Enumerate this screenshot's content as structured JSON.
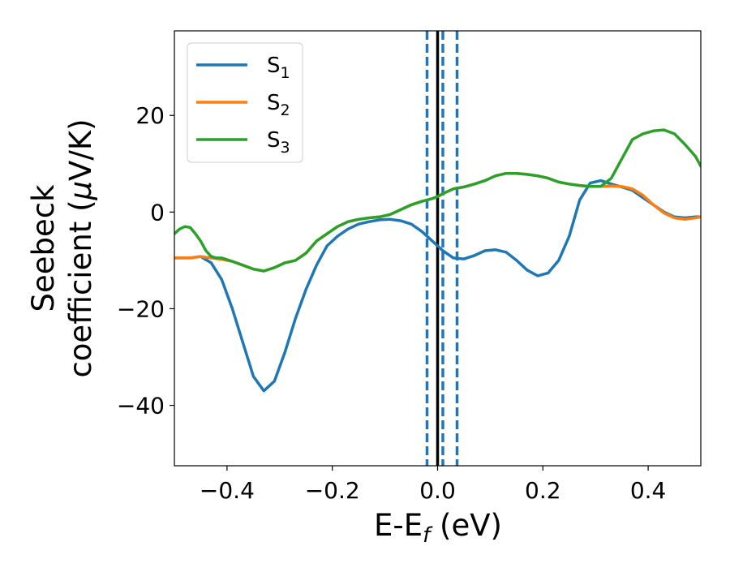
{
  "chart_data": {
    "type": "line",
    "xlabel": "E-E",
    "xlabel_sub": "f",
    "xlabel_unit": " (eV)",
    "ylabel_line1": "Seebeck",
    "ylabel_line2": "coefficient  (",
    "ylabel_mu": "μ",
    "ylabel_unit": "V/K)",
    "xlim": [
      -0.5,
      0.5
    ],
    "ylim": [
      -52.5,
      37.5
    ],
    "xticks": [
      -0.4,
      -0.2,
      0.0,
      0.2,
      0.4
    ],
    "xtick_labels": [
      "−0.4",
      "−0.2",
      "0.0",
      "0.2",
      "0.4"
    ],
    "yticks": [
      -40,
      -20,
      0,
      20
    ],
    "ytick_labels": [
      "−40",
      "−20",
      "0",
      "20"
    ],
    "grid": false,
    "legend_position": "upper-left",
    "series": [
      {
        "name": "S",
        "sub": "1",
        "color": "#1f77b4",
        "x": [
          -0.5,
          -0.47,
          -0.45,
          -0.43,
          -0.41,
          -0.39,
          -0.37,
          -0.35,
          -0.33,
          -0.31,
          -0.29,
          -0.27,
          -0.25,
          -0.23,
          -0.21,
          -0.19,
          -0.17,
          -0.15,
          -0.13,
          -0.11,
          -0.09,
          -0.07,
          -0.05,
          -0.03,
          -0.01,
          0.0,
          0.01,
          0.03,
          0.05,
          0.07,
          0.09,
          0.11,
          0.13,
          0.15,
          0.17,
          0.19,
          0.21,
          0.23,
          0.25,
          0.27,
          0.29,
          0.31,
          0.33,
          0.35,
          0.37,
          0.39,
          0.41,
          0.43,
          0.45,
          0.47,
          0.49,
          0.5
        ],
        "y": [
          -9.5,
          -9.5,
          -9.2,
          -10.5,
          -14,
          -20,
          -27,
          -34,
          -37,
          -35,
          -29,
          -22,
          -16,
          -11,
          -7,
          -5,
          -3.5,
          -2.5,
          -2,
          -1.6,
          -1.5,
          -1.8,
          -2.5,
          -4,
          -6,
          -7,
          -8,
          -9.5,
          -9.7,
          -9,
          -8,
          -7.8,
          -8.3,
          -10,
          -12,
          -13.2,
          -12.6,
          -10,
          -5,
          2.5,
          6,
          6.5,
          5.8,
          5.2,
          4.5,
          3,
          1.5,
          0,
          -1,
          -1.2,
          -1,
          -1
        ]
      },
      {
        "name": "S",
        "sub": "2",
        "color": "#ff7f0e",
        "x": [
          -0.5,
          -0.47,
          -0.45,
          -0.43,
          -0.41,
          -0.39,
          -0.37,
          -0.35,
          -0.33,
          -0.31,
          -0.29,
          -0.27,
          -0.25,
          -0.23,
          -0.21,
          -0.19,
          -0.17,
          -0.15,
          -0.13,
          -0.11,
          -0.09,
          -0.07,
          -0.05,
          -0.03,
          -0.01,
          0.0,
          0.01,
          0.03,
          0.05,
          0.07,
          0.09,
          0.11,
          0.13,
          0.15,
          0.17,
          0.19,
          0.21,
          0.23,
          0.25,
          0.27,
          0.29,
          0.31,
          0.33,
          0.35,
          0.37,
          0.39,
          0.41,
          0.43,
          0.45,
          0.47,
          0.49,
          0.5
        ],
        "y": [
          -9.5,
          -9.5,
          -9.2,
          -9.5,
          -9.8,
          -10.2,
          -11,
          -11.8,
          -12.2,
          -11.5,
          -10.5,
          -10,
          -8.5,
          -6,
          -4.5,
          -3,
          -2,
          -1.5,
          -1.2,
          -1,
          -0.5,
          0.5,
          1.5,
          2.2,
          2.8,
          3.2,
          3.8,
          4.8,
          5.2,
          5.8,
          6.5,
          7.5,
          8,
          8,
          7.8,
          7.5,
          7,
          6.2,
          5.8,
          5.5,
          5.3,
          5.3,
          5.4,
          5.3,
          4.8,
          3.5,
          1.5,
          -0.2,
          -1.2,
          -1.5,
          -1.2,
          -1
        ]
      },
      {
        "name": "S",
        "sub": "3",
        "color": "#2ca02c",
        "x": [
          -0.5,
          -0.49,
          -0.48,
          -0.47,
          -0.46,
          -0.45,
          -0.44,
          -0.43,
          -0.42,
          -0.41,
          -0.39,
          -0.37,
          -0.35,
          -0.33,
          -0.31,
          -0.29,
          -0.27,
          -0.25,
          -0.23,
          -0.21,
          -0.19,
          -0.17,
          -0.15,
          -0.13,
          -0.11,
          -0.09,
          -0.07,
          -0.05,
          -0.03,
          -0.01,
          0.0,
          0.01,
          0.03,
          0.05,
          0.07,
          0.09,
          0.11,
          0.13,
          0.15,
          0.17,
          0.19,
          0.21,
          0.23,
          0.25,
          0.27,
          0.29,
          0.31,
          0.33,
          0.35,
          0.37,
          0.39,
          0.41,
          0.43,
          0.45,
          0.47,
          0.49,
          0.5
        ],
        "y": [
          -4.5,
          -3.5,
          -3,
          -3.2,
          -4.5,
          -6,
          -8,
          -9.2,
          -9.5,
          -9.5,
          -10.2,
          -11,
          -11.8,
          -12.2,
          -11.5,
          -10.5,
          -10,
          -8.5,
          -6,
          -4.5,
          -3,
          -2,
          -1.5,
          -1.2,
          -1,
          -0.5,
          0.5,
          1.5,
          2.2,
          2.8,
          3.2,
          3.8,
          4.8,
          5.2,
          5.8,
          6.5,
          7.5,
          8,
          8,
          7.8,
          7.5,
          7,
          6.2,
          5.8,
          5.5,
          5.3,
          5.3,
          7,
          11,
          15,
          16.2,
          16.8,
          17,
          16.2,
          14,
          11.5,
          9.5
        ]
      }
    ],
    "vertical_lines": [
      {
        "x": 0.0,
        "style": "solid",
        "color": "#000000"
      },
      {
        "x": -0.02,
        "style": "dashed",
        "color": "#1f77b4"
      },
      {
        "x": 0.01,
        "style": "dashed",
        "color": "#1f77b4"
      },
      {
        "x": 0.037,
        "style": "dashed",
        "color": "#1f77b4"
      }
    ]
  }
}
